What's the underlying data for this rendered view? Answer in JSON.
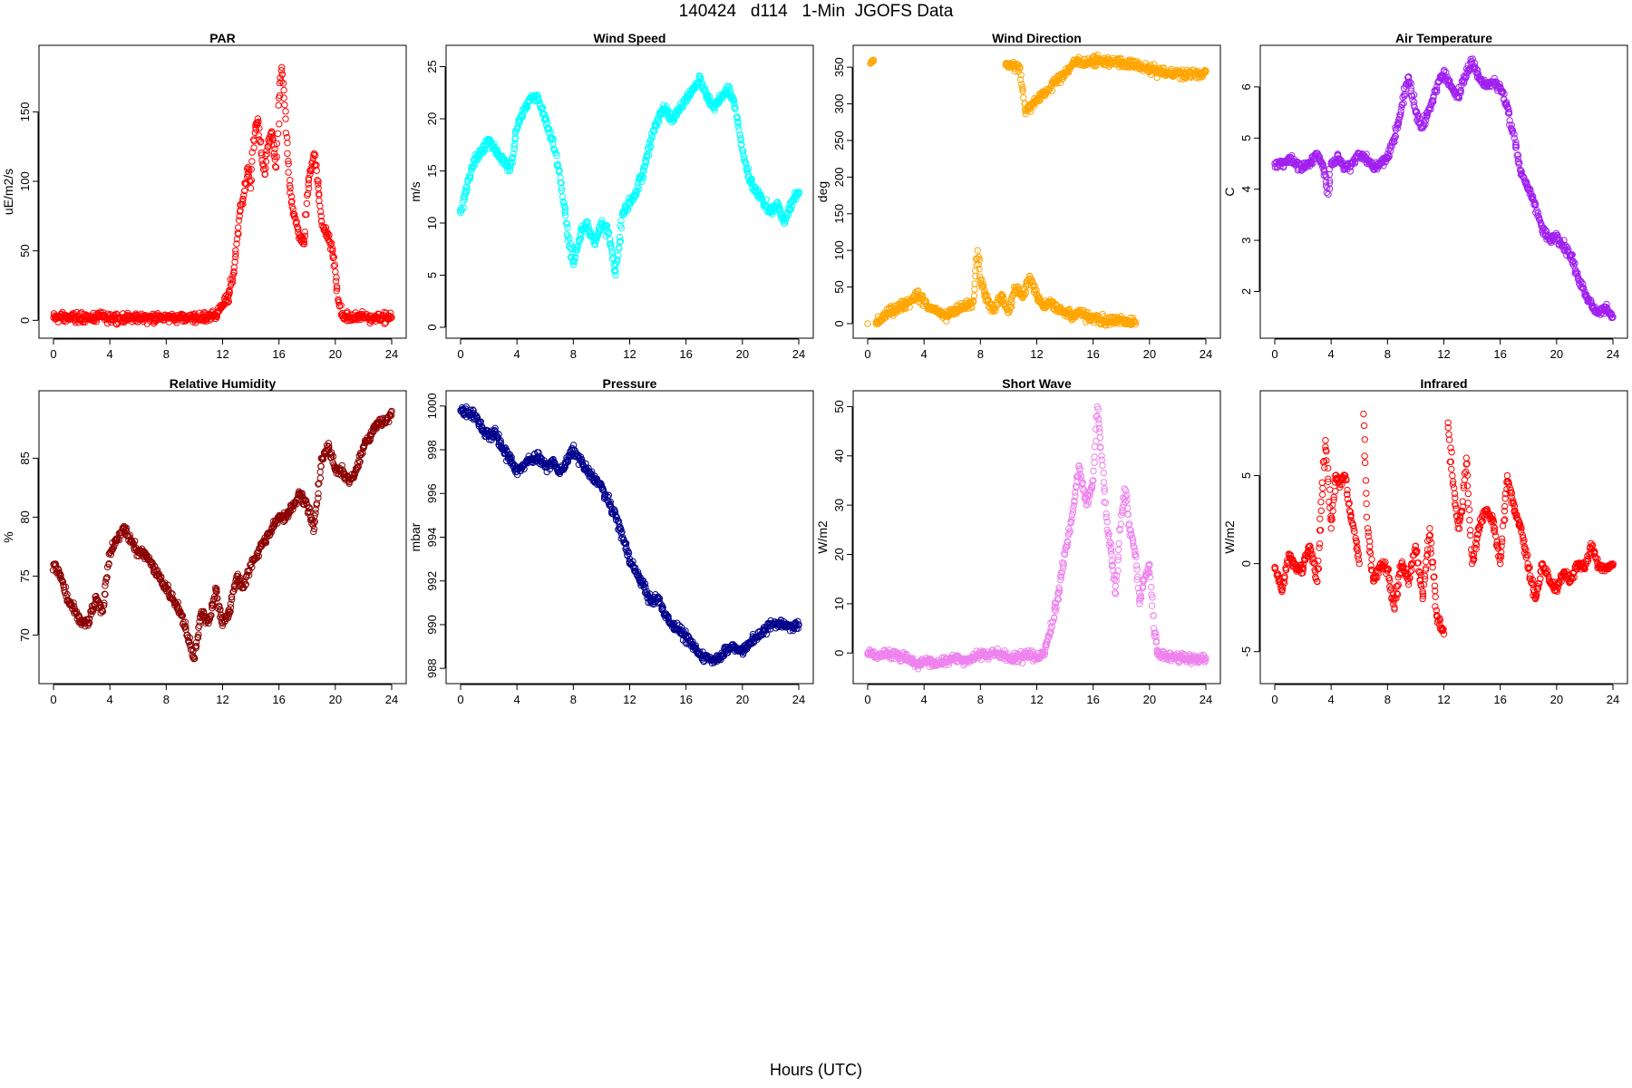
{
  "title": "140424   d114   1-Min  JGOFS Data",
  "xaxis_caption": "Hours (UTC)",
  "chart_data": [
    {
      "type": "scatter",
      "title": "PAR",
      "ylabel": "uE/m2/s",
      "color": "#ff0000",
      "xlim": [
        0,
        24
      ],
      "ylim": [
        -5,
        190
      ],
      "xticks": [
        0,
        4,
        8,
        12,
        16,
        20,
        24
      ],
      "yticks": [
        0,
        50,
        100,
        150
      ],
      "grid": false,
      "x": [
        0,
        1,
        2,
        3,
        4,
        5,
        6,
        7,
        8,
        9,
        10,
        11,
        11.5,
        12,
        12.5,
        12.8,
        13,
        13.2,
        13.5,
        13.8,
        14,
        14.2,
        14.5,
        14.8,
        15,
        15.2,
        15.5,
        15.8,
        16,
        16.2,
        16.4,
        16.6,
        16.8,
        17,
        17.2,
        17.5,
        17.8,
        18,
        18.2,
        18.5,
        18.8,
        19,
        19.2,
        19.5,
        19.8,
        20,
        20.2,
        20.5,
        21,
        22,
        23,
        24
      ],
      "y": [
        2,
        2,
        2,
        2,
        2,
        2,
        2,
        2,
        2,
        2,
        2,
        2,
        4,
        10,
        20,
        35,
        55,
        75,
        90,
        110,
        95,
        130,
        145,
        115,
        105,
        125,
        135,
        110,
        160,
        182,
        155,
        120,
        95,
        80,
        70,
        60,
        55,
        90,
        105,
        120,
        95,
        75,
        65,
        60,
        50,
        35,
        15,
        3,
        2,
        2,
        2,
        2
      ]
    },
    {
      "type": "scatter",
      "title": "Wind Speed",
      "ylabel": "m/s",
      "color": "#00ffff",
      "xlim": [
        0,
        24
      ],
      "ylim": [
        0,
        26
      ],
      "xticks": [
        0,
        4,
        8,
        12,
        16,
        20,
        24
      ],
      "yticks": [
        0,
        5,
        10,
        15,
        20,
        25
      ],
      "grid": false,
      "x": [
        0,
        0.5,
        1,
        1.5,
        2,
        2.5,
        3,
        3.5,
        4,
        4.5,
        5,
        5.5,
        6,
        6.5,
        7,
        7.5,
        8,
        8.5,
        9,
        9.5,
        10,
        10.5,
        11,
        11.5,
        12,
        12.5,
        13,
        13.5,
        14,
        14.5,
        15,
        15.5,
        16,
        16.5,
        17,
        17.5,
        18,
        18.5,
        19,
        19.5,
        20,
        20.5,
        21,
        21.5,
        22,
        22.5,
        23,
        23.5,
        24
      ],
      "y": [
        11,
        14,
        16,
        17,
        18,
        17,
        16,
        15,
        19,
        21,
        22,
        22,
        20,
        18,
        15,
        10,
        6,
        9,
        10,
        8,
        10,
        9,
        5,
        11,
        12,
        13,
        15,
        18,
        20,
        21,
        20,
        21,
        22,
        23,
        24,
        22,
        21,
        22,
        23,
        21,
        17,
        14,
        13,
        12,
        11,
        12,
        10,
        12,
        13
      ]
    },
    {
      "type": "scatter",
      "title": "Wind Direction",
      "ylabel": "deg",
      "color": "#ffa500",
      "xlim": [
        0,
        24
      ],
      "ylim": [
        -5,
        365
      ],
      "xticks": [
        0,
        4,
        8,
        12,
        16,
        20,
        24
      ],
      "yticks": [
        0,
        50,
        100,
        150,
        200,
        250,
        300,
        350
      ],
      "grid": false,
      "x": [
        0,
        0.2,
        0.4,
        0.6,
        1,
        1.5,
        2,
        2.5,
        3,
        3.5,
        4,
        4.5,
        5,
        5.5,
        6,
        6.5,
        7,
        7.5,
        7.8,
        8,
        8.5,
        9,
        9.5,
        10,
        10.5,
        11,
        11.5,
        12,
        12.5,
        13,
        13.5,
        14,
        14.5,
        15,
        15.5,
        16,
        16.5,
        17,
        17.5,
        18,
        18.5,
        19,
        9.8,
        10.8,
        11.0,
        11.2,
        14.8,
        16.5,
        17.5,
        18.5,
        19.5,
        20.5,
        21.5,
        22.5,
        23.5,
        24
      ],
      "y": [
        0,
        355,
        358,
        2,
        5,
        15,
        20,
        25,
        30,
        40,
        30,
        20,
        15,
        10,
        15,
        20,
        25,
        30,
        100,
        60,
        30,
        20,
        40,
        15,
        50,
        35,
        65,
        40,
        25,
        30,
        20,
        15,
        10,
        15,
        10,
        8,
        5,
        3,
        4,
        5,
        3,
        2,
        355,
        350,
        320,
        290,
        358,
        358,
        357,
        355,
        350,
        345,
        342,
        340,
        340,
        345
      ]
    },
    {
      "type": "scatter",
      "title": "Air Temperature",
      "ylabel": "C",
      "color": "#a020f0",
      "xlim": [
        0,
        24
      ],
      "ylim": [
        1.3,
        6.6
      ],
      "xticks": [
        0,
        4,
        8,
        12,
        16,
        20,
        24
      ],
      "yticks": [
        2,
        3,
        4,
        5,
        6
      ],
      "grid": false,
      "x": [
        0,
        0.5,
        1,
        1.5,
        2,
        2.5,
        3,
        3.5,
        3.8,
        4,
        4.5,
        5,
        5.5,
        6,
        6.5,
        7,
        7.5,
        8,
        8.5,
        9,
        9.5,
        10,
        10.5,
        11,
        11.5,
        12,
        12.5,
        13,
        13.5,
        14,
        14.5,
        15,
        15.5,
        16,
        16.5,
        17,
        17.5,
        18,
        18.5,
        19,
        19.5,
        20,
        20.5,
        21,
        21.5,
        22,
        22.5,
        23,
        23.5,
        24
      ],
      "y": [
        4.5,
        4.5,
        4.6,
        4.5,
        4.4,
        4.5,
        4.7,
        4.4,
        3.9,
        4.5,
        4.6,
        4.4,
        4.5,
        4.7,
        4.6,
        4.4,
        4.5,
        4.6,
        5.0,
        5.6,
        6.2,
        5.5,
        5.2,
        5.6,
        6.0,
        6.3,
        6.0,
        5.8,
        6.2,
        6.5,
        6.2,
        6.0,
        6.1,
        6.0,
        5.6,
        5.0,
        4.3,
        4.0,
        3.7,
        3.2,
        3.0,
        3.1,
        2.9,
        2.7,
        2.3,
        2.0,
        1.7,
        1.6,
        1.7,
        1.5
      ]
    },
    {
      "type": "scatter",
      "title": "Relative Humidity",
      "ylabel": "%",
      "color": "#8b0000",
      "xlim": [
        0,
        24
      ],
      "ylim": [
        66.8,
        89.8
      ],
      "xticks": [
        0,
        4,
        8,
        12,
        16,
        20,
        24
      ],
      "yticks": [
        70,
        75,
        80,
        85
      ],
      "grid": false,
      "x": [
        0,
        0.5,
        1,
        1.5,
        2,
        2.5,
        3,
        3.5,
        4,
        4.5,
        5,
        5.5,
        6,
        6.5,
        7,
        7.5,
        8,
        8.5,
        9,
        9.5,
        10,
        10.5,
        11,
        11.5,
        12,
        12.5,
        13,
        13.5,
        14,
        14.5,
        15,
        15.5,
        16,
        16.5,
        17,
        17.5,
        18,
        18.5,
        19,
        19.5,
        20,
        20.5,
        21,
        21.5,
        22,
        22.5,
        23,
        23.5,
        24
      ],
      "y": [
        76,
        75,
        73,
        72,
        71,
        71,
        73,
        72,
        77,
        78,
        79,
        78,
        77,
        77,
        76,
        75,
        74,
        73,
        72,
        70,
        68,
        72,
        71,
        74,
        71,
        72,
        75,
        74,
        76,
        77,
        78,
        79,
        80,
        80,
        81,
        82,
        81,
        79,
        85,
        86,
        84,
        84,
        83,
        84,
        86,
        87,
        88,
        88,
        89
      ]
    },
    {
      "type": "scatter",
      "title": "Pressure",
      "ylabel": "mbar",
      "color": "#00008b",
      "xlim": [
        0,
        24
      ],
      "ylim": [
        987.8,
        1000.2
      ],
      "xticks": [
        0,
        4,
        8,
        12,
        16,
        20,
        24
      ],
      "yticks": [
        988,
        990,
        992,
        994,
        996,
        998,
        1000
      ],
      "grid": false,
      "x": [
        0,
        0.5,
        1,
        1.5,
        2,
        2.5,
        3,
        3.5,
        4,
        4.5,
        5,
        5.5,
        6,
        6.5,
        7,
        7.5,
        8,
        8.5,
        9,
        9.5,
        10,
        10.5,
        11,
        11.5,
        12,
        12.5,
        13,
        13.5,
        14,
        14.5,
        15,
        15.5,
        16,
        16.5,
        17,
        17.5,
        18,
        18.5,
        19,
        19.5,
        20,
        20.5,
        21,
        21.5,
        22,
        22.5,
        23,
        23.5,
        24
      ],
      "y": [
        999.8,
        999.7,
        999.6,
        999.0,
        998.6,
        998.8,
        998.0,
        997.6,
        997.0,
        997.3,
        997.6,
        997.7,
        997.2,
        997.5,
        997.0,
        997.4,
        998.0,
        997.5,
        997.0,
        996.7,
        996.3,
        995.6,
        995.0,
        994.0,
        993.0,
        992.3,
        991.8,
        991.0,
        991.2,
        990.5,
        990.0,
        989.8,
        989.4,
        989.0,
        988.6,
        988.5,
        988.4,
        988.6,
        988.9,
        989.0,
        988.8,
        989.2,
        989.4,
        989.7,
        990.0,
        990.1,
        990.0,
        989.9,
        990.0
      ]
    },
    {
      "type": "scatter",
      "title": "Short Wave",
      "ylabel": "W/m2",
      "color": "#ee82ee",
      "xlim": [
        0,
        24
      ],
      "ylim": [
        -4,
        51
      ],
      "xticks": [
        0,
        4,
        8,
        12,
        16,
        20,
        24
      ],
      "yticks": [
        0,
        10,
        20,
        30,
        40,
        50
      ],
      "grid": false,
      "x": [
        0,
        1,
        2,
        3,
        3.5,
        4,
        5,
        6,
        7,
        8,
        9,
        10,
        11,
        11.5,
        12,
        12.5,
        13,
        13.5,
        14,
        14.5,
        15,
        15.5,
        16,
        16.3,
        16.6,
        17,
        17.3,
        17.6,
        18,
        18.3,
        18.6,
        19,
        19.3,
        19.6,
        20,
        20.3,
        20.6,
        21,
        22,
        23,
        24
      ],
      "y": [
        0,
        -0.5,
        -0.3,
        -1,
        -2.5,
        -1.5,
        -2,
        -1,
        -1.5,
        -0.5,
        0,
        -0.8,
        -1,
        0,
        -1,
        0,
        5,
        12,
        20,
        28,
        38,
        30,
        35,
        50,
        40,
        25,
        20,
        12,
        28,
        33,
        25,
        20,
        10,
        15,
        18,
        5,
        0,
        -0.5,
        -1,
        -1.2,
        -1
      ]
    },
    {
      "type": "scatter",
      "title": "Infrared",
      "ylabel": "W/m2",
      "color": "#ff0000",
      "xlim": [
        0,
        24
      ],
      "ylim": [
        -6.2,
        9.2
      ],
      "xticks": [
        0,
        4,
        8,
        12,
        16,
        20,
        24
      ],
      "yticks": [
        -5,
        0,
        5
      ],
      "grid": false,
      "x": [
        0,
        0.5,
        1,
        1.5,
        2,
        2.5,
        3,
        3.3,
        3.6,
        4,
        4.3,
        4.6,
        5,
        5.3,
        5.6,
        6,
        6.3,
        6.6,
        7,
        7.5,
        8,
        8.5,
        9,
        9.5,
        10,
        10.5,
        11,
        11.5,
        12,
        12.3,
        12.6,
        13,
        13.3,
        13.6,
        14,
        14.5,
        15,
        15.5,
        16,
        16.5,
        17,
        17.5,
        18,
        18.5,
        19,
        19.5,
        20,
        20.5,
        21,
        21.5,
        22,
        22.5,
        23,
        23.5,
        24
      ],
      "y": [
        -0.2,
        -1.5,
        0.5,
        -0.3,
        -0.2,
        1,
        -1,
        3,
        7,
        2,
        5,
        4.5,
        5,
        3,
        2,
        0,
        8.5,
        2,
        -1,
        0,
        -0.3,
        -2.5,
        0,
        -1,
        1,
        -2,
        2,
        -3,
        -4,
        8,
        5,
        2,
        3,
        6,
        0,
        2,
        3,
        2.5,
        0,
        5,
        3,
        2,
        -0.3,
        -2,
        0,
        -1,
        -1.5,
        -0.5,
        -1,
        0,
        -0.3,
        1,
        -0.2,
        -0.3,
        -0.1
      ]
    }
  ]
}
